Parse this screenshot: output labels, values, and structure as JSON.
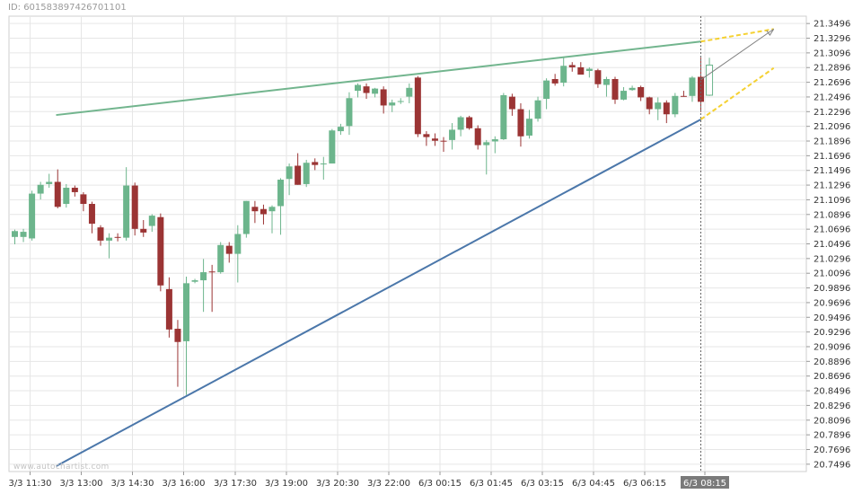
{
  "header": {
    "id_text": "ID: 6015838974267011​01"
  },
  "watermark": "www.autochartist.com",
  "colors": {
    "bull": "#6cb58c",
    "bear": "#9b3434",
    "upper_line": "#72b58e",
    "lower_line": "#4b77aa",
    "forecast": "#f5d132",
    "arrow": "#808080",
    "grid": "#e6e6e6",
    "axis_text": "#333333",
    "highlight_bg": "#7a7a7a"
  },
  "chart_data": {
    "type": "candlestick",
    "title": "",
    "y_ticks": [
      "21.3496",
      "21.3296",
      "21.3096",
      "21.2896",
      "21.2696",
      "21.2496",
      "21.2296",
      "21.2096",
      "21.1896",
      "21.1696",
      "21.1496",
      "21.1296",
      "21.1096",
      "21.0896",
      "21.0696",
      "21.0496",
      "21.0296",
      "21.0096",
      "20.9896",
      "20.9696",
      "20.9496",
      "20.9296",
      "20.9096",
      "20.8896",
      "20.8696",
      "20.8496",
      "20.8296",
      "20.8096",
      "20.7896",
      "20.7696",
      "20.7496"
    ],
    "ylim": [
      20.7396,
      21.3596
    ],
    "x_ticks": [
      "3/3 11:30",
      "3/3 13:00",
      "3/3 14:30",
      "3/3 16:00",
      "3/3 17:30",
      "3/3 19:00",
      "3/3 20:30",
      "3/3 22:00",
      "6/3 00:15",
      "6/3 01:45",
      "6/3 03:15",
      "6/3 04:45",
      "6/3 06:15",
      "6/3 08:15"
    ],
    "highlighted_x_label": "6/3 08:15",
    "candles": [
      {
        "o": 21.059,
        "h": 21.069,
        "l": 21.049,
        "c": 21.067
      },
      {
        "o": 21.059,
        "h": 21.07,
        "l": 21.052,
        "c": 21.066
      },
      {
        "o": 21.057,
        "h": 21.122,
        "l": 21.054,
        "c": 21.118
      },
      {
        "o": 21.118,
        "h": 21.134,
        "l": 21.11,
        "c": 21.13
      },
      {
        "o": 21.131,
        "h": 21.145,
        "l": 21.126,
        "c": 21.134
      },
      {
        "o": 21.134,
        "h": 21.151,
        "l": 21.098,
        "c": 21.1
      },
      {
        "o": 21.104,
        "h": 21.131,
        "l": 21.099,
        "c": 21.126
      },
      {
        "o": 21.126,
        "h": 21.129,
        "l": 21.114,
        "c": 21.12
      },
      {
        "o": 21.117,
        "h": 21.12,
        "l": 21.094,
        "c": 21.104
      },
      {
        "o": 21.104,
        "h": 21.107,
        "l": 21.064,
        "c": 21.077
      },
      {
        "o": 21.072,
        "h": 21.075,
        "l": 21.047,
        "c": 21.054
      },
      {
        "o": 21.054,
        "h": 21.064,
        "l": 21.03,
        "c": 21.058
      },
      {
        "o": 21.059,
        "h": 21.064,
        "l": 21.053,
        "c": 21.058
      },
      {
        "o": 21.058,
        "h": 21.154,
        "l": 21.054,
        "c": 21.129
      },
      {
        "o": 21.129,
        "h": 21.133,
        "l": 21.061,
        "c": 21.07
      },
      {
        "o": 21.07,
        "h": 21.082,
        "l": 21.059,
        "c": 21.065
      },
      {
        "o": 21.074,
        "h": 21.09,
        "l": 21.066,
        "c": 21.088
      },
      {
        "o": 21.086,
        "h": 21.091,
        "l": 20.985,
        "c": 20.993
      },
      {
        "o": 20.988,
        "h": 21.004,
        "l": 20.922,
        "c": 20.933
      },
      {
        "o": 20.934,
        "h": 20.946,
        "l": 20.855,
        "c": 20.916
      },
      {
        "o": 20.917,
        "h": 21.005,
        "l": 20.844,
        "c": 20.996
      },
      {
        "o": 20.998,
        "h": 21.002,
        "l": 20.996,
        "c": 21.0
      },
      {
        "o": 21.0,
        "h": 21.029,
        "l": 20.957,
        "c": 21.011
      },
      {
        "o": 21.012,
        "h": 21.021,
        "l": 20.957,
        "c": 21.011
      },
      {
        "o": 21.011,
        "h": 21.052,
        "l": 21.009,
        "c": 21.048
      },
      {
        "o": 21.047,
        "h": 21.052,
        "l": 21.024,
        "c": 21.036
      },
      {
        "o": 21.036,
        "h": 21.075,
        "l": 20.997,
        "c": 21.063
      },
      {
        "o": 21.063,
        "h": 21.108,
        "l": 21.058,
        "c": 21.108
      },
      {
        "o": 21.1,
        "h": 21.108,
        "l": 21.078,
        "c": 21.094
      },
      {
        "o": 21.097,
        "h": 21.103,
        "l": 21.076,
        "c": 21.09
      },
      {
        "o": 21.094,
        "h": 21.102,
        "l": 21.064,
        "c": 21.1
      },
      {
        "o": 21.101,
        "h": 21.139,
        "l": 21.062,
        "c": 21.137
      },
      {
        "o": 21.138,
        "h": 21.159,
        "l": 21.116,
        "c": 21.155
      },
      {
        "o": 21.156,
        "h": 21.173,
        "l": 21.13,
        "c": 21.13
      },
      {
        "o": 21.131,
        "h": 21.164,
        "l": 21.127,
        "c": 21.16
      },
      {
        "o": 21.161,
        "h": 21.166,
        "l": 21.15,
        "c": 21.157
      },
      {
        "o": 21.158,
        "h": 21.168,
        "l": 21.137,
        "c": 21.159
      },
      {
        "o": 21.159,
        "h": 21.206,
        "l": 21.159,
        "c": 21.204
      },
      {
        "o": 21.203,
        "h": 21.213,
        "l": 21.198,
        "c": 21.209
      },
      {
        "o": 21.21,
        "h": 21.256,
        "l": 21.198,
        "c": 21.248
      },
      {
        "o": 21.258,
        "h": 21.268,
        "l": 21.249,
        "c": 21.266
      },
      {
        "o": 21.264,
        "h": 21.268,
        "l": 21.247,
        "c": 21.255
      },
      {
        "o": 21.254,
        "h": 21.262,
        "l": 21.249,
        "c": 21.261
      },
      {
        "o": 21.26,
        "h": 21.264,
        "l": 21.227,
        "c": 21.238
      },
      {
        "o": 21.238,
        "h": 21.246,
        "l": 21.229,
        "c": 21.242
      },
      {
        "o": 21.243,
        "h": 21.248,
        "l": 21.24,
        "c": 21.244
      },
      {
        "o": 21.25,
        "h": 21.268,
        "l": 21.241,
        "c": 21.262
      },
      {
        "o": 21.276,
        "h": 21.278,
        "l": 21.195,
        "c": 21.199
      },
      {
        "o": 21.199,
        "h": 21.203,
        "l": 21.183,
        "c": 21.195
      },
      {
        "o": 21.193,
        "h": 21.2,
        "l": 21.183,
        "c": 21.19
      },
      {
        "o": 21.19,
        "h": 21.195,
        "l": 21.175,
        "c": 21.189
      },
      {
        "o": 21.191,
        "h": 21.214,
        "l": 21.178,
        "c": 21.205
      },
      {
        "o": 21.205,
        "h": 21.224,
        "l": 21.196,
        "c": 21.222
      },
      {
        "o": 21.222,
        "h": 21.224,
        "l": 21.205,
        "c": 21.207
      },
      {
        "o": 21.207,
        "h": 21.211,
        "l": 21.178,
        "c": 21.184
      },
      {
        "o": 21.184,
        "h": 21.191,
        "l": 21.144,
        "c": 21.188
      },
      {
        "o": 21.189,
        "h": 21.196,
        "l": 21.173,
        "c": 21.192
      },
      {
        "o": 21.192,
        "h": 21.255,
        "l": 21.191,
        "c": 21.252
      },
      {
        "o": 21.25,
        "h": 21.254,
        "l": 21.224,
        "c": 21.233
      },
      {
        "o": 21.233,
        "h": 21.241,
        "l": 21.182,
        "c": 21.196
      },
      {
        "o": 21.197,
        "h": 21.232,
        "l": 21.193,
        "c": 21.22
      },
      {
        "o": 21.22,
        "h": 21.25,
        "l": 21.216,
        "c": 21.245
      },
      {
        "o": 21.247,
        "h": 21.275,
        "l": 21.233,
        "c": 21.272
      },
      {
        "o": 21.274,
        "h": 21.281,
        "l": 21.265,
        "c": 21.268
      },
      {
        "o": 21.269,
        "h": 21.304,
        "l": 21.264,
        "c": 21.292
      },
      {
        "o": 21.293,
        "h": 21.297,
        "l": 21.284,
        "c": 21.29
      },
      {
        "o": 21.29,
        "h": 21.297,
        "l": 21.281,
        "c": 21.28
      },
      {
        "o": 21.285,
        "h": 21.29,
        "l": 21.276,
        "c": 21.288
      },
      {
        "o": 21.286,
        "h": 21.288,
        "l": 21.262,
        "c": 21.267
      },
      {
        "o": 21.266,
        "h": 21.277,
        "l": 21.25,
        "c": 21.274
      },
      {
        "o": 21.274,
        "h": 21.277,
        "l": 21.24,
        "c": 21.246
      },
      {
        "o": 21.246,
        "h": 21.263,
        "l": 21.245,
        "c": 21.258
      },
      {
        "o": 21.259,
        "h": 21.265,
        "l": 21.258,
        "c": 21.262
      },
      {
        "o": 21.263,
        "h": 21.265,
        "l": 21.244,
        "c": 21.249
      },
      {
        "o": 21.249,
        "h": 21.25,
        "l": 21.226,
        "c": 21.233
      },
      {
        "o": 21.233,
        "h": 21.249,
        "l": 21.218,
        "c": 21.242
      },
      {
        "o": 21.242,
        "h": 21.245,
        "l": 21.214,
        "c": 21.226
      },
      {
        "o": 21.226,
        "h": 21.255,
        "l": 21.222,
        "c": 21.251
      },
      {
        "o": 21.251,
        "h": 21.258,
        "l": 21.25,
        "c": 21.25
      },
      {
        "o": 21.251,
        "h": 21.278,
        "l": 21.243,
        "c": 21.276
      },
      {
        "o": 21.277,
        "h": 21.303,
        "l": 21.229,
        "c": 21.243
      },
      {
        "o": 21.252,
        "h": 21.303,
        "l": 21.251,
        "c": 21.293,
        "open_candle": true
      }
    ],
    "pattern": {
      "upper_line": {
        "from": {
          "i": 0,
          "y": 21.225
        },
        "to": {
          "i": 80,
          "y": 21.325
        }
      },
      "lower_line": {
        "from": {
          "i": 0,
          "y": 20.747
        },
        "to": {
          "i": 80,
          "y": 21.219
        }
      },
      "current_index": 80,
      "forecast_upper": {
        "i": 88.5,
        "y": 21.342
      },
      "forecast_lower": {
        "i": 88.5,
        "y": 21.289
      },
      "arrow_from": {
        "i": 80,
        "y": 21.273
      },
      "arrow_to": {
        "i": 88.5,
        "y": 21.342
      }
    }
  }
}
